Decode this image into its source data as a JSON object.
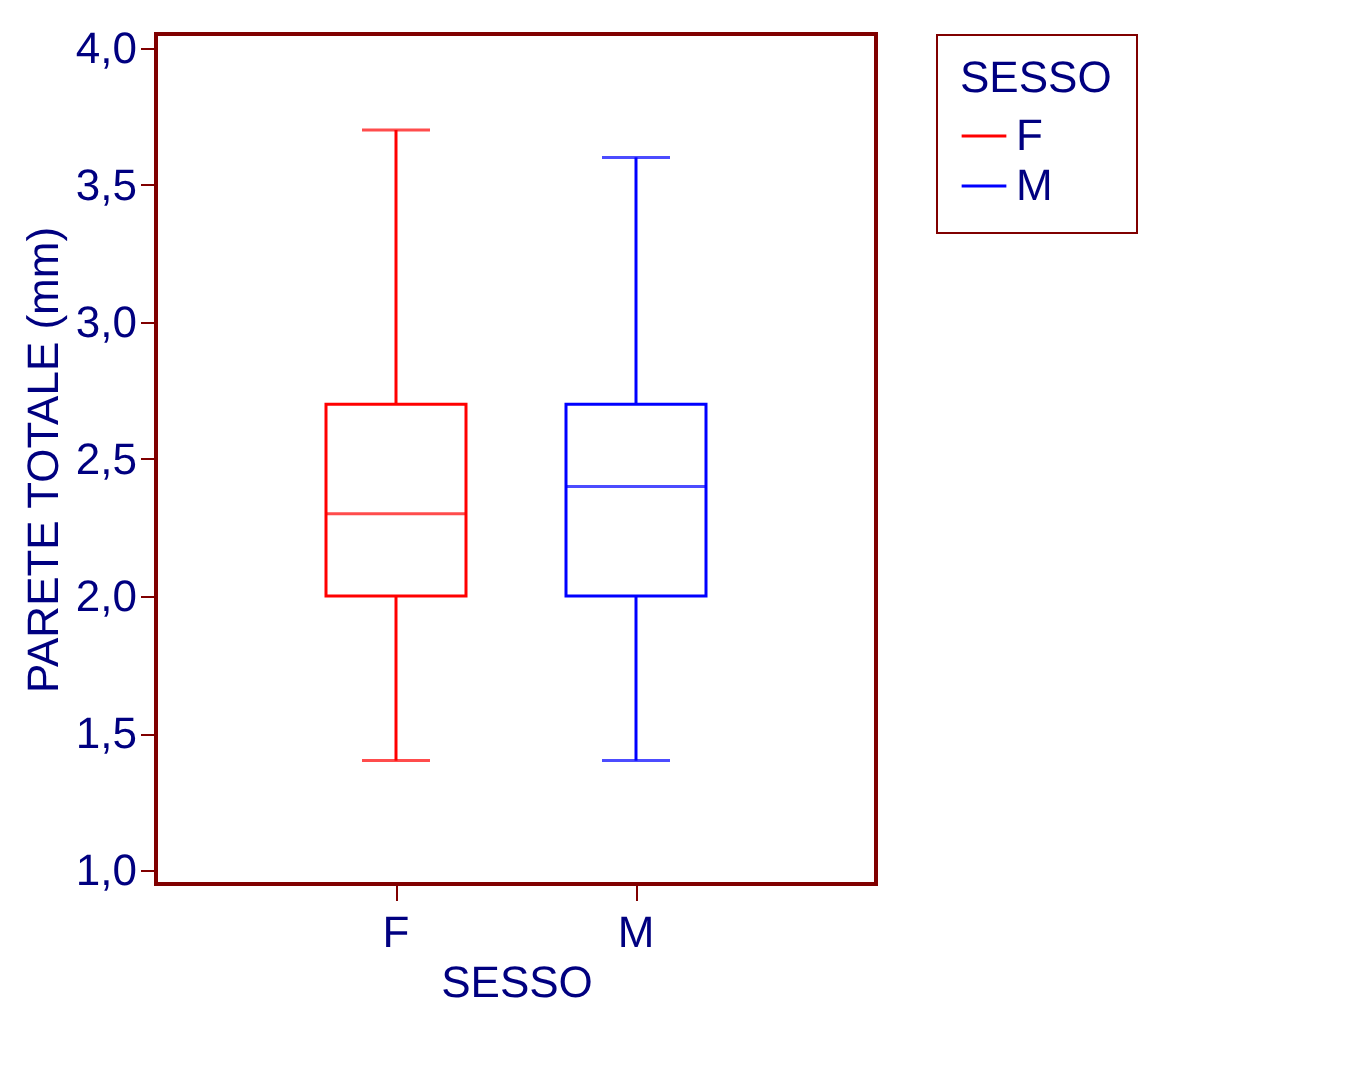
{
  "chart_data": {
    "type": "box",
    "xlabel": "SESSO",
    "ylabel": "PARETE TOTALE (mm)",
    "legend_title": "SESSO",
    "legend": "right",
    "grid": false,
    "categories": [
      "F",
      "M"
    ],
    "series": [
      {
        "name": "F",
        "color": "#ff0000",
        "boxes": [
          {
            "low": 1.4,
            "q1": 2.0,
            "median": 2.3,
            "q3": 2.7,
            "high": 3.7
          },
          null
        ]
      },
      {
        "name": "M",
        "color": "#0000ff",
        "boxes": [
          null,
          {
            "low": 1.4,
            "q1": 2.0,
            "median": 2.4,
            "q3": 2.7,
            "high": 3.6
          }
        ]
      }
    ],
    "ylim": [
      0.95,
      4.05
    ],
    "yticks": [
      {
        "value": 1.0,
        "label": "1,0"
      },
      {
        "value": 1.5,
        "label": "1,5"
      },
      {
        "value": 2.0,
        "label": "2,0"
      },
      {
        "value": 2.5,
        "label": "2,5"
      },
      {
        "value": 3.0,
        "label": "3,0"
      },
      {
        "value": 3.5,
        "label": "3,5"
      },
      {
        "value": 4.0,
        "label": "4,0"
      }
    ]
  }
}
